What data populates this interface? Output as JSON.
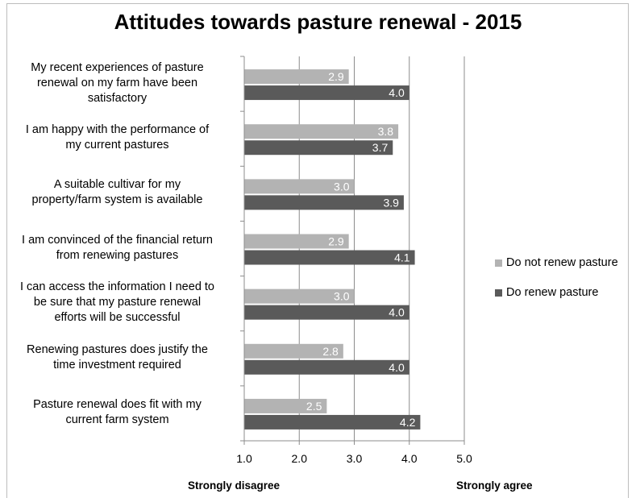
{
  "chart_data": {
    "type": "bar",
    "orientation": "horizontal",
    "title": "Attitudes towards pasture renewal - 2015",
    "categories": [
      "My recent experiences of pasture renewal on my farm have been satisfactory",
      "I am happy with the performance of my current pastures",
      "A suitable cultivar for my property/farm system is available",
      "I am convinced of the financial return from renewing pastures",
      "I can access the information I need to be sure that my pasture renewal efforts will be successful",
      "Renewing pastures does justify the time investment required",
      "Pasture renewal does fit with my current farm system"
    ],
    "category_lines": [
      [
        "My recent experiences of pasture",
        "renewal on my farm have been",
        "satisfactory"
      ],
      [
        "I am happy with the performance of",
        "my current pastures"
      ],
      [
        "A suitable cultivar for my",
        "property/farm system is available"
      ],
      [
        "I am convinced of the financial return",
        "from renewing pastures"
      ],
      [
        "I can access the information I need to",
        "be sure that my pasture renewal",
        "efforts will be successful"
      ],
      [
        "Renewing pastures does justify the",
        "time investment required"
      ],
      [
        "Pasture renewal does fit with my",
        "current farm system"
      ]
    ],
    "series": [
      {
        "name": "Do not renew pasture",
        "color": "#b3b3b3",
        "values": [
          2.9,
          3.8,
          3.0,
          2.9,
          3.0,
          2.8,
          2.5
        ],
        "value_labels": [
          "2.9",
          "3.8",
          "3.0",
          "2.9",
          "3.0",
          "2.8",
          "2.5"
        ]
      },
      {
        "name": "Do renew pasture",
        "color": "#5a5a5a",
        "values": [
          4.0,
          3.7,
          3.9,
          4.1,
          4.0,
          4.0,
          4.2
        ],
        "value_labels": [
          "4.0",
          "3.7",
          "3.9",
          "4.1",
          "4.0",
          "4.0",
          "4.2"
        ]
      }
    ],
    "xlim": [
      1.0,
      5.0
    ],
    "x_ticks": [
      "1.0",
      "2.0",
      "3.0",
      "4.0",
      "5.0"
    ],
    "x_tick_values": [
      1,
      2,
      3,
      4,
      5
    ],
    "x_end_labels": {
      "left": "Strongly disagree",
      "right": "Strongly agree"
    },
    "grid": "vertical major",
    "legend_position": "right"
  }
}
